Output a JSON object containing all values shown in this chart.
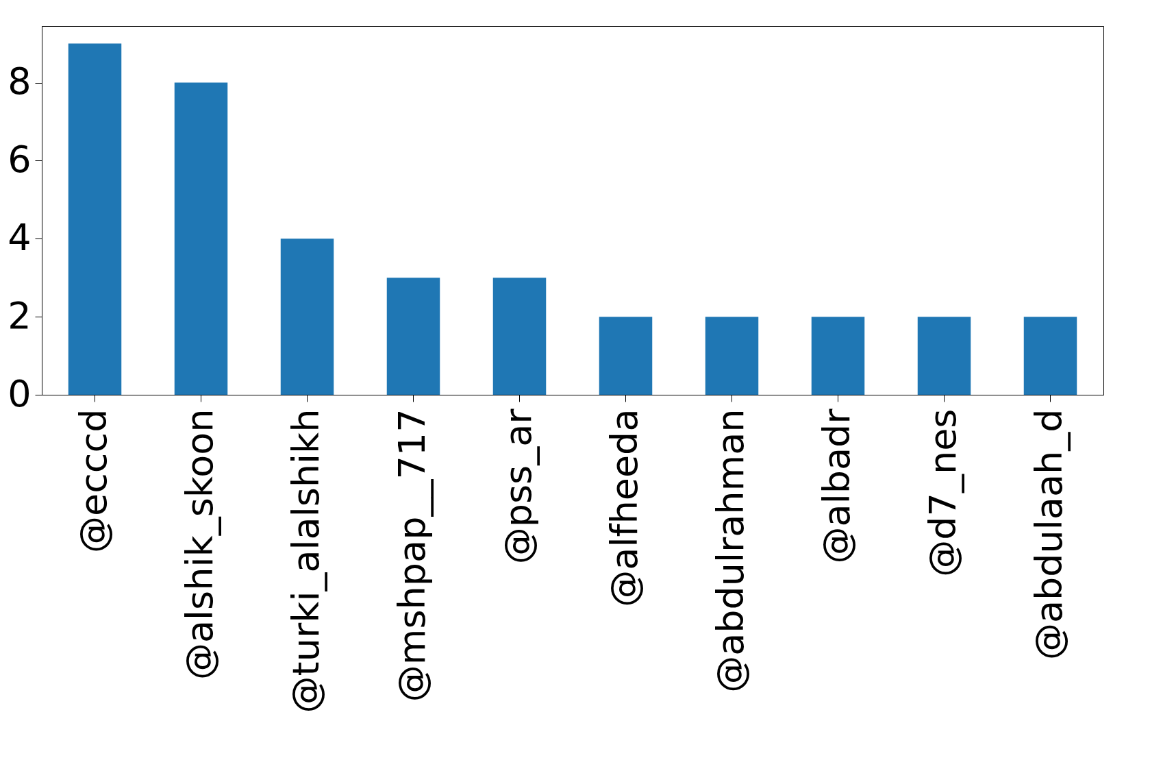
{
  "chart_data": {
    "type": "bar",
    "categories": [
      "@ecccd",
      "@alshik_skoon",
      "@turki_alalshikh",
      "@mshpap__717",
      "@pss_ar",
      "@alfheeda",
      "@abdulrahman",
      "@albadr",
      "@d7_nes",
      "@abdulaah_d"
    ],
    "values": [
      9,
      8,
      4,
      3,
      3,
      2,
      2,
      2,
      2,
      2
    ],
    "color": "#1f77b4",
    "ylim": [
      0,
      9.45
    ],
    "yticks": [
      0,
      2,
      4,
      6,
      8
    ],
    "grid": false
  }
}
